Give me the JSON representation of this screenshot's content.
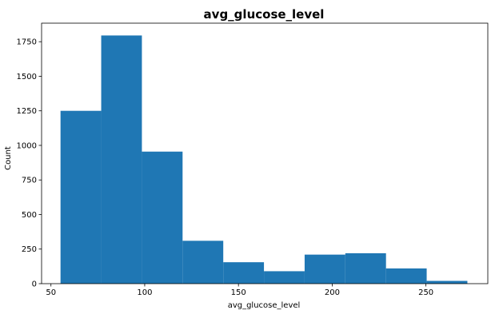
{
  "chart_data": {
    "type": "bar",
    "title": "avg_glucose_level",
    "xlabel": "avg_glucose_level",
    "ylabel": "Count",
    "bin_edges": [
      55.1,
      76.8,
      98.5,
      120.2,
      141.9,
      163.6,
      185.3,
      207.0,
      228.7,
      250.4,
      272.1
    ],
    "values": [
      1250,
      1795,
      955,
      310,
      155,
      90,
      210,
      220,
      110,
      20
    ],
    "xlim": [
      45,
      283
    ],
    "ylim": [
      0,
      1884
    ],
    "xticks": [
      50,
      100,
      150,
      200,
      250
    ],
    "yticks": [
      0,
      250,
      500,
      750,
      1000,
      1250,
      1500,
      1750
    ],
    "bar_color": "#1f77b4",
    "grid": false,
    "legend": "none"
  }
}
